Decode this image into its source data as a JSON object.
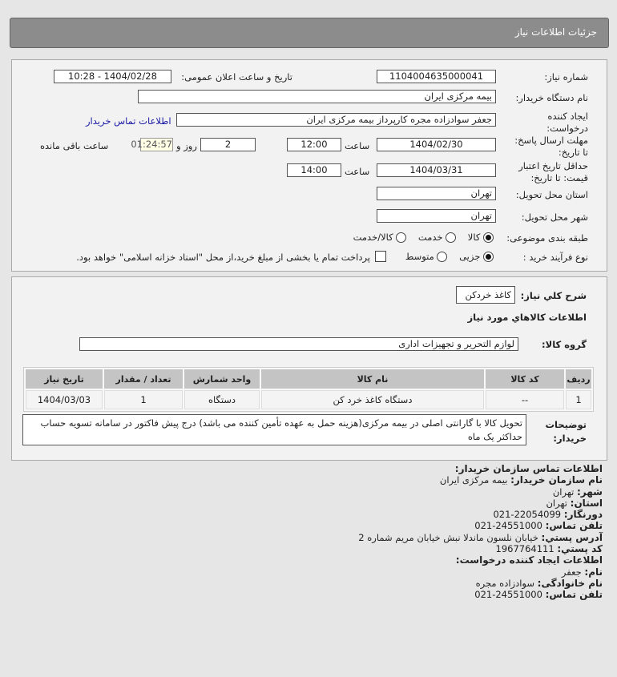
{
  "header": {
    "title": "جزئیات اطلاعات نیاز"
  },
  "form": {
    "need_number_label": "شماره نیاز:",
    "need_number": "1104004635000041",
    "announce_label": "تاریخ و ساعت اعلان عمومی:",
    "announce_value": "1404/02/28 - 10:28",
    "buyer_label": "نام دستگاه خریدار:",
    "buyer_value": "بیمه مرکزی ایران",
    "creator_label_1": "ایجاد کننده",
    "creator_label_2": "درخواست:",
    "creator_value": "جعفر سوادزاده مجره کارپرداز بیمه مرکزی ایران",
    "contact_link": "اطلاعات تماس خریدار",
    "deadline_label_1": "مهلت ارسال پاسخ:",
    "deadline_label_2": "تا تاریخ:",
    "deadline_date": "1404/02/30",
    "time_label": "ساعت",
    "deadline_time": "12:00",
    "days": "2",
    "days_label": "روز و",
    "remaining": "01:24:57",
    "remaining_label": "ساعت باقی مانده",
    "validity_label_1": "حداقل تاریخ اعتبار",
    "validity_label_2": "قیمت: تا تاریخ:",
    "validity_date": "1404/03/31",
    "validity_time": "14:00",
    "province_label": "استان محل تحویل:",
    "province_value": "تهران",
    "city_label": "شهر محل تحویل:",
    "city_value": "تهران",
    "category_label": "طبقه بندی موضوعی:",
    "category_options": [
      "کالا",
      "خدمت",
      "کالا/خدمت"
    ],
    "category_selected": "کالا",
    "process_label": "نوع فرآیند خرید :",
    "process_options": [
      "جزیی",
      "متوسط"
    ],
    "process_selected": "جزیی",
    "payment_note": "پرداخت تمام یا بخشی از مبلغ خرید،از محل \"اسناد خزانه اسلامی\" خواهد بود."
  },
  "details": {
    "summary_label": "شرح کلي نياز:",
    "summary_value": "کاغذ خردکن",
    "goods_title": "اطلاعات کالاهاي مورد نياز",
    "group_label": "گروه کالا:",
    "group_value": "لوازم التحریر و تجهیزات اداری",
    "table": {
      "headers": [
        "رديف",
        "کد کالا",
        "نام کالا",
        "واحد شمارش",
        "تعداد / مقدار",
        "تاریخ نیاز"
      ],
      "rows": [
        [
          "1",
          "--",
          "دستگاه کاغذ خرد کن",
          "دستگاه",
          "1",
          "1404/03/03"
        ]
      ]
    },
    "notes_label_1": "توضیحات",
    "notes_label_2": "خریدار:",
    "notes_value": "تحویل کالا با گارانتی اصلی در بیمه مرکزی(هزینه حمل به عهده تأمین کننده می باشد) درج پیش فاکتور در سامانه تسویه حساب حداکثر یک ماه"
  },
  "contact": {
    "title": "اطلاعات تماس سازمان خریدار:",
    "org_label": "نام سازمان خریدار:",
    "org": "بیمه مرکزی ایران",
    "city_label": "شهر:",
    "city": "تهران",
    "province_label": "استان:",
    "province": "تهران",
    "fax_label": "دورنگار:",
    "fax": "22054099-021",
    "phone_label": "تلفن تماس:",
    "phone": "24551000-021",
    "address_label": "آدرس پستي:",
    "address": "خیابان نلسون ماندلا نبش خیابان مریم شماره 2",
    "postal_label": "کد پستي:",
    "postal": "1967764111",
    "creator_title": "اطلاعات ایجاد کننده درخواست:",
    "name_label": "نام:",
    "name": "جعفر",
    "family_label": "نام خانوادگی:",
    "family": "سوادزاده مجره",
    "creator_phone_label": "تلفن تماس:",
    "creator_phone": "24551000-021"
  },
  "colors": {
    "header_bg": "#8c8c8c",
    "link": "#1a1aa6",
    "remaining_bg": "#ffffe6"
  }
}
